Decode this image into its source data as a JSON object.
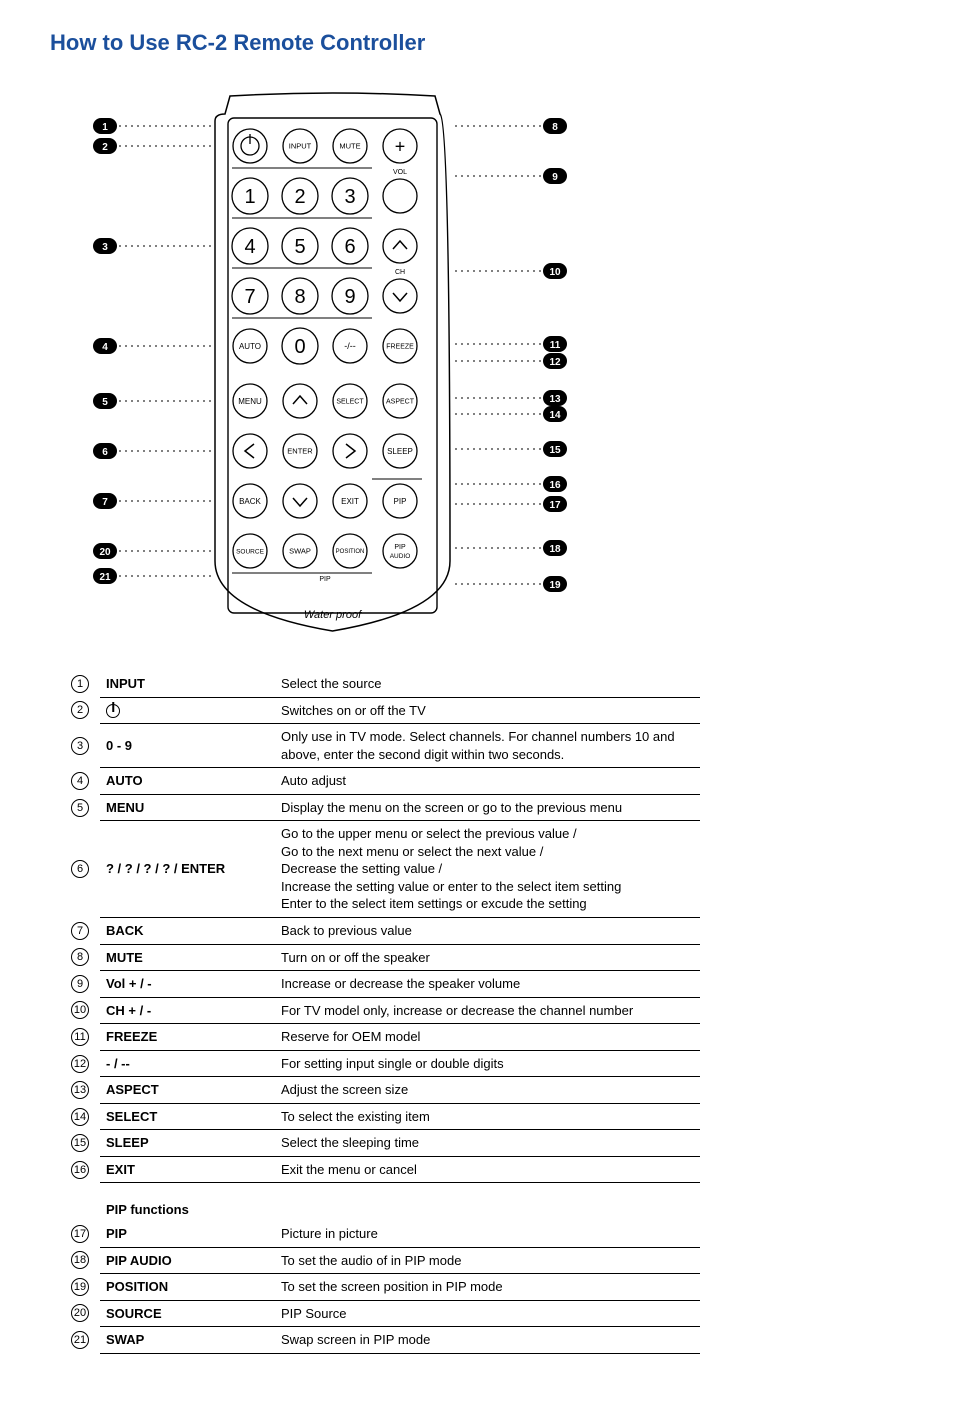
{
  "title": "How to Use RC-2 Remote Controller",
  "colors": {
    "heading": "#1b4f9c",
    "text": "#000000",
    "bg": "#ffffff",
    "line": "#000000"
  },
  "remote": {
    "footer_text": "Water proof",
    "buttons": {
      "input": "INPUT",
      "mute": "MUTE",
      "plus": "+",
      "minus": "−",
      "auto": "AUTO",
      "zero": "0",
      "dash": "-/--",
      "freeze": "FREEZE",
      "menu": "MENU",
      "select": "SELECT",
      "aspect": "ASPECT",
      "enter": "ENTER",
      "sleep": "SLEEP",
      "back": "BACK",
      "exit": "EXIT",
      "pip": "PIP",
      "source": "SOURCE",
      "swap": "SWAP",
      "position": "POSITION",
      "pip_audio": "PIP AUDIO",
      "vol_label": "VOL",
      "ch_label": "CH",
      "pip_label": "PIP"
    },
    "numpad": [
      "1",
      "2",
      "3",
      "4",
      "5",
      "6",
      "7",
      "8",
      "9"
    ]
  },
  "callouts_left": [
    "1",
    "2",
    "3",
    "4",
    "5",
    "6",
    "7",
    "20",
    "21"
  ],
  "callouts_right": [
    "8",
    "9",
    "10",
    "11",
    "12",
    "13",
    "14",
    "15",
    "16",
    "17",
    "18",
    "19"
  ],
  "functions": [
    {
      "n": "1",
      "label": "INPUT",
      "desc": "Select the source"
    },
    {
      "n": "2",
      "label": "⏻",
      "desc": "Switches on or off the TV",
      "is_power_icon": true
    },
    {
      "n": "3",
      "label": "0 - 9",
      "desc": "Only use in TV mode. Select channels. For channel numbers 10 and above, enter the second digit within two seconds."
    },
    {
      "n": "4",
      "label": "AUTO",
      "desc": "Auto adjust"
    },
    {
      "n": "5",
      "label": "MENU",
      "desc": "Display the menu on the screen or go to the previous menu"
    },
    {
      "n": "6",
      "label": "? / ?  / ?  / ?  / ENTER",
      "desc": "Go to the upper menu or select the previous value /\nGo to the next menu or select the next value /\nDecrease the setting value /\nIncrease the setting value or enter to the select item setting\nEnter to the select item settings or excude the setting"
    },
    {
      "n": "7",
      "label": "BACK",
      "desc": "Back to previous value"
    },
    {
      "n": "8",
      "label": "MUTE",
      "desc": "Turn on or off the speaker"
    },
    {
      "n": "9",
      "label": "Vol + / -",
      "desc": "Increase or decrease the speaker volume"
    },
    {
      "n": "10",
      "label": "CH + / -",
      "desc": "For TV model only, increase or decrease the channel number"
    },
    {
      "n": "11",
      "label": "FREEZE",
      "desc": "Reserve for OEM model"
    },
    {
      "n": "12",
      "label": "- / --",
      "desc": "For setting input single or double digits"
    },
    {
      "n": "13",
      "label": "ASPECT",
      "desc": "Adjust the screen size"
    },
    {
      "n": "14",
      "label": "SELECT",
      "desc": "To select the existing item"
    },
    {
      "n": "15",
      "label": "SLEEP",
      "desc": "Select the sleeping time"
    },
    {
      "n": "16",
      "label": "EXIT",
      "desc": "Exit the menu or cancel"
    }
  ],
  "pip_section_title": "PIP functions",
  "pip_functions": [
    {
      "n": "17",
      "label": "PIP",
      "desc": "Picture in picture"
    },
    {
      "n": "18",
      "label": "PIP AUDIO",
      "desc": "To set the audio of in PIP mode"
    },
    {
      "n": "19",
      "label": "POSITION",
      "desc": "To set the screen position in PIP mode"
    },
    {
      "n": "20",
      "label": "SOURCE",
      "desc": "PIP Source"
    },
    {
      "n": "21",
      "label": "SWAP",
      "desc": "Swap screen in PIP mode"
    }
  ]
}
